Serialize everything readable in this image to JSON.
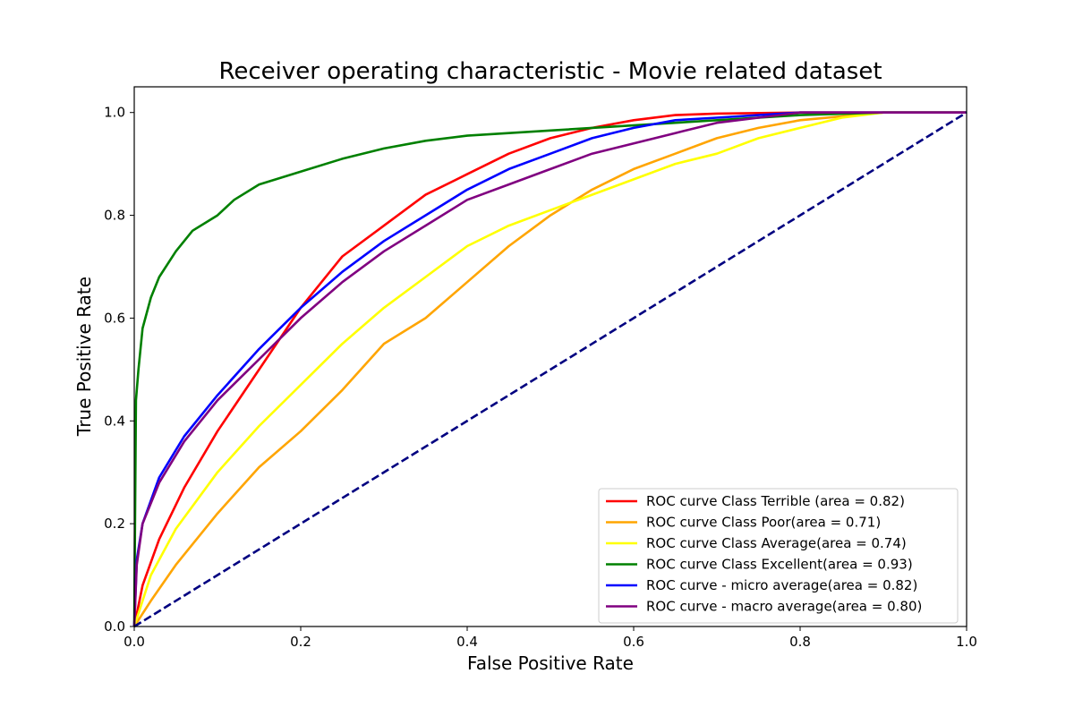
{
  "chart_data": {
    "type": "line",
    "title": "Receiver operating characteristic - Movie related dataset",
    "xlabel": "False Positive Rate",
    "ylabel": "True Positive Rate",
    "xlim": [
      0.0,
      1.0
    ],
    "ylim": [
      0.0,
      1.05
    ],
    "xticks": [
      "0.0",
      "0.2",
      "0.4",
      "0.6",
      "0.8",
      "1.0"
    ],
    "yticks": [
      "0.0",
      "0.2",
      "0.4",
      "0.6",
      "0.8",
      "1.0"
    ],
    "grid": false,
    "legend_position": "lower-right",
    "series": [
      {
        "name": "ROC curve Class Terrible (area = 0.82)",
        "color": "#ff0000",
        "x": [
          0,
          0.01,
          0.03,
          0.06,
          0.1,
          0.15,
          0.2,
          0.25,
          0.3,
          0.35,
          0.4,
          0.45,
          0.5,
          0.55,
          0.6,
          0.65,
          0.7,
          0.8,
          0.9,
          1.0
        ],
        "y": [
          0,
          0.08,
          0.17,
          0.27,
          0.38,
          0.5,
          0.62,
          0.72,
          0.78,
          0.84,
          0.88,
          0.92,
          0.95,
          0.97,
          0.985,
          0.995,
          0.998,
          1.0,
          1.0,
          1.0
        ]
      },
      {
        "name": "ROC curve Class Poor(area = 0.71)",
        "color": "#ffa500",
        "x": [
          0,
          0.02,
          0.05,
          0.1,
          0.15,
          0.2,
          0.25,
          0.3,
          0.35,
          0.4,
          0.45,
          0.5,
          0.55,
          0.6,
          0.65,
          0.7,
          0.75,
          0.8,
          0.9,
          1.0
        ],
        "y": [
          0,
          0.05,
          0.12,
          0.22,
          0.31,
          0.38,
          0.46,
          0.55,
          0.6,
          0.67,
          0.74,
          0.8,
          0.85,
          0.89,
          0.92,
          0.95,
          0.97,
          0.985,
          1.0,
          1.0
        ]
      },
      {
        "name": "ROC curve Class Average(area = 0.74)",
        "color": "#ffff00",
        "x": [
          0,
          0.02,
          0.05,
          0.1,
          0.15,
          0.2,
          0.25,
          0.3,
          0.35,
          0.4,
          0.45,
          0.5,
          0.55,
          0.6,
          0.65,
          0.7,
          0.75,
          0.8,
          0.85,
          0.9,
          1.0
        ],
        "y": [
          0,
          0.1,
          0.19,
          0.3,
          0.39,
          0.47,
          0.55,
          0.62,
          0.68,
          0.74,
          0.78,
          0.81,
          0.84,
          0.87,
          0.9,
          0.92,
          0.95,
          0.97,
          0.99,
          1.0,
          1.0
        ]
      },
      {
        "name": "ROC curve Class Excellent(area = 0.93)",
        "color": "#008000",
        "x": [
          0,
          0.002,
          0.005,
          0.01,
          0.02,
          0.03,
          0.05,
          0.07,
          0.1,
          0.12,
          0.15,
          0.2,
          0.25,
          0.3,
          0.35,
          0.4,
          0.5,
          0.6,
          0.7,
          0.8,
          0.9,
          1.0
        ],
        "y": [
          0,
          0.44,
          0.5,
          0.58,
          0.64,
          0.68,
          0.73,
          0.77,
          0.8,
          0.83,
          0.86,
          0.885,
          0.91,
          0.93,
          0.945,
          0.955,
          0.965,
          0.975,
          0.985,
          0.995,
          1.0,
          1.0
        ]
      },
      {
        "name": "ROC curve - micro average(area = 0.82)",
        "color": "#0000ff",
        "x": [
          0,
          0.003,
          0.01,
          0.03,
          0.06,
          0.1,
          0.15,
          0.2,
          0.25,
          0.3,
          0.35,
          0.4,
          0.45,
          0.5,
          0.55,
          0.6,
          0.65,
          0.7,
          0.8,
          0.9,
          1.0
        ],
        "y": [
          0,
          0.13,
          0.2,
          0.29,
          0.37,
          0.45,
          0.54,
          0.62,
          0.69,
          0.75,
          0.8,
          0.85,
          0.89,
          0.92,
          0.95,
          0.97,
          0.985,
          0.99,
          1.0,
          1.0,
          1.0
        ]
      },
      {
        "name": "ROC curve - macro average(area = 0.80)",
        "color": "#800080",
        "x": [
          0,
          0.003,
          0.01,
          0.03,
          0.06,
          0.1,
          0.15,
          0.2,
          0.25,
          0.3,
          0.35,
          0.4,
          0.45,
          0.5,
          0.55,
          0.6,
          0.65,
          0.7,
          0.75,
          0.8,
          0.9,
          1.0
        ],
        "y": [
          0,
          0.12,
          0.2,
          0.28,
          0.36,
          0.44,
          0.52,
          0.6,
          0.67,
          0.73,
          0.78,
          0.83,
          0.86,
          0.89,
          0.92,
          0.94,
          0.96,
          0.98,
          0.99,
          1.0,
          1.0,
          1.0
        ]
      },
      {
        "name": "",
        "color": "#000080",
        "dashed": true,
        "x": [
          0,
          1
        ],
        "y": [
          0,
          1
        ]
      }
    ]
  }
}
